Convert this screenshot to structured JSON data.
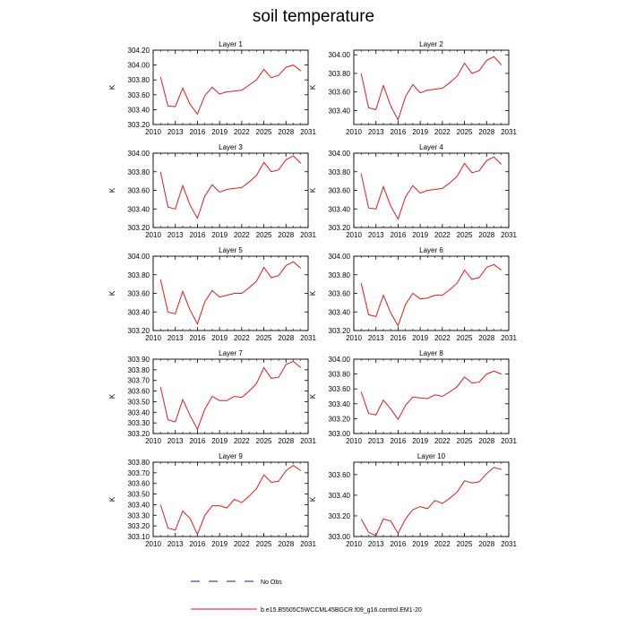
{
  "title": "soil temperature",
  "chart_data": [
    {
      "type": "line",
      "title": "Layer 1",
      "ylabel": "K",
      "x": [
        2011,
        2012,
        2013,
        2014,
        2015,
        2016,
        2017,
        2018,
        2019,
        2020,
        2021,
        2022,
        2023,
        2024,
        2025,
        2026,
        2027,
        2028,
        2029,
        2030
      ],
      "xticks": [
        "2010",
        "2013",
        "2016",
        "2019",
        "2022",
        "2025",
        "2028",
        "2031"
      ],
      "xlim": [
        2010,
        2031
      ],
      "yticks": [
        "303.20",
        "303.40",
        "303.60",
        "303.80",
        "304.00",
        "304.20"
      ],
      "ylim": [
        303.2,
        304.2
      ],
      "series": [
        {
          "values": [
            303.84,
            303.45,
            303.44,
            303.69,
            303.47,
            303.34,
            303.59,
            303.7,
            303.61,
            303.64,
            303.65,
            303.66,
            303.73,
            303.8,
            303.94,
            303.83,
            303.86,
            303.97,
            304.0,
            303.92
          ]
        }
      ]
    },
    {
      "type": "line",
      "title": "Layer 2",
      "ylabel": "K",
      "x": [
        2011,
        2012,
        2013,
        2014,
        2015,
        2016,
        2017,
        2018,
        2019,
        2020,
        2021,
        2022,
        2023,
        2024,
        2025,
        2026,
        2027,
        2028,
        2029,
        2030
      ],
      "xticks": [
        "2010",
        "2013",
        "2016",
        "2019",
        "2022",
        "2025",
        "2028",
        "2031"
      ],
      "xlim": [
        2010,
        2031
      ],
      "yticks": [
        "303.40",
        "303.60",
        "303.80",
        "304.00"
      ],
      "ylim": [
        303.25,
        304.05
      ],
      "series": [
        {
          "values": [
            303.8,
            303.43,
            303.41,
            303.67,
            303.45,
            303.3,
            303.55,
            303.68,
            303.59,
            303.62,
            303.63,
            303.64,
            303.7,
            303.77,
            303.91,
            303.8,
            303.83,
            303.94,
            303.98,
            303.89
          ]
        }
      ]
    },
    {
      "type": "line",
      "title": "Layer 3",
      "ylabel": "K",
      "x": [
        2011,
        2012,
        2013,
        2014,
        2015,
        2016,
        2017,
        2018,
        2019,
        2020,
        2021,
        2022,
        2023,
        2024,
        2025,
        2026,
        2027,
        2028,
        2029,
        2030
      ],
      "xticks": [
        "2010",
        "2013",
        "2016",
        "2019",
        "2022",
        "2025",
        "2028",
        "2031"
      ],
      "xlim": [
        2010,
        2031
      ],
      "yticks": [
        "303.20",
        "303.40",
        "303.60",
        "303.80",
        "304.00"
      ],
      "ylim": [
        303.2,
        304.0
      ],
      "series": [
        {
          "values": [
            303.8,
            303.42,
            303.4,
            303.65,
            303.44,
            303.3,
            303.54,
            303.66,
            303.58,
            303.61,
            303.62,
            303.63,
            303.69,
            303.76,
            303.9,
            303.8,
            303.82,
            303.93,
            303.97,
            303.89
          ]
        }
      ]
    },
    {
      "type": "line",
      "title": "Layer 4",
      "ylabel": "K",
      "x": [
        2011,
        2012,
        2013,
        2014,
        2015,
        2016,
        2017,
        2018,
        2019,
        2020,
        2021,
        2022,
        2023,
        2024,
        2025,
        2026,
        2027,
        2028,
        2029,
        2030
      ],
      "xticks": [
        "2010",
        "2013",
        "2016",
        "2019",
        "2022",
        "2025",
        "2028",
        "2031"
      ],
      "xlim": [
        2010,
        2031
      ],
      "yticks": [
        "303.20",
        "303.40",
        "303.60",
        "303.80",
        "304.00"
      ],
      "ylim": [
        303.2,
        304.0
      ],
      "series": [
        {
          "values": [
            303.78,
            303.41,
            303.4,
            303.64,
            303.43,
            303.29,
            303.53,
            303.65,
            303.57,
            303.6,
            303.61,
            303.62,
            303.68,
            303.75,
            303.89,
            303.79,
            303.81,
            303.92,
            303.96,
            303.88
          ]
        }
      ]
    },
    {
      "type": "line",
      "title": "Layer 5",
      "ylabel": "K",
      "x": [
        2011,
        2012,
        2013,
        2014,
        2015,
        2016,
        2017,
        2018,
        2019,
        2020,
        2021,
        2022,
        2023,
        2024,
        2025,
        2026,
        2027,
        2028,
        2029,
        2030
      ],
      "xticks": [
        "2010",
        "2013",
        "2016",
        "2019",
        "2022",
        "2025",
        "2028",
        "2031"
      ],
      "xlim": [
        2010,
        2031
      ],
      "yticks": [
        "303.20",
        "303.40",
        "303.60",
        "303.80",
        "304.00"
      ],
      "ylim": [
        303.2,
        304.0
      ],
      "series": [
        {
          "values": [
            303.75,
            303.4,
            303.38,
            303.62,
            303.42,
            303.27,
            303.51,
            303.63,
            303.56,
            303.58,
            303.6,
            303.6,
            303.66,
            303.73,
            303.88,
            303.77,
            303.79,
            303.9,
            303.94,
            303.87
          ]
        }
      ]
    },
    {
      "type": "line",
      "title": "Layer 6",
      "ylabel": "K",
      "x": [
        2011,
        2012,
        2013,
        2014,
        2015,
        2016,
        2017,
        2018,
        2019,
        2020,
        2021,
        2022,
        2023,
        2024,
        2025,
        2026,
        2027,
        2028,
        2029,
        2030
      ],
      "xticks": [
        "2010",
        "2013",
        "2016",
        "2019",
        "2022",
        "2025",
        "2028",
        "2031"
      ],
      "xlim": [
        2010,
        2031
      ],
      "yticks": [
        "303.20",
        "303.40",
        "303.60",
        "303.80",
        "304.00"
      ],
      "ylim": [
        303.2,
        304.0
      ],
      "series": [
        {
          "values": [
            303.71,
            303.37,
            303.35,
            303.58,
            303.39,
            303.25,
            303.48,
            303.6,
            303.54,
            303.55,
            303.58,
            303.58,
            303.64,
            303.71,
            303.85,
            303.75,
            303.77,
            303.88,
            303.91,
            303.85
          ]
        }
      ]
    },
    {
      "type": "line",
      "title": "Layer 7",
      "ylabel": "K",
      "x": [
        2011,
        2012,
        2013,
        2014,
        2015,
        2016,
        2017,
        2018,
        2019,
        2020,
        2021,
        2022,
        2023,
        2024,
        2025,
        2026,
        2027,
        2028,
        2029,
        2030
      ],
      "xticks": [
        "2010",
        "2013",
        "2016",
        "2019",
        "2022",
        "2025",
        "2028",
        "2031"
      ],
      "xlim": [
        2010,
        2031
      ],
      "yticks": [
        "303.20",
        "303.30",
        "303.40",
        "303.50",
        "303.60",
        "303.70",
        "303.80",
        "303.90"
      ],
      "ylim": [
        303.2,
        303.9
      ],
      "series": [
        {
          "values": [
            303.64,
            303.33,
            303.31,
            303.52,
            303.37,
            303.24,
            303.43,
            303.55,
            303.51,
            303.51,
            303.55,
            303.54,
            303.6,
            303.67,
            303.82,
            303.72,
            303.73,
            303.85,
            303.88,
            303.82
          ]
        }
      ]
    },
    {
      "type": "line",
      "title": "Layer 8",
      "ylabel": "K",
      "x": [
        2011,
        2012,
        2013,
        2014,
        2015,
        2016,
        2017,
        2018,
        2019,
        2020,
        2021,
        2022,
        2023,
        2024,
        2025,
        2026,
        2027,
        2028,
        2029,
        2030
      ],
      "xticks": [
        "2010",
        "2013",
        "2016",
        "2019",
        "2022",
        "2025",
        "2028",
        "2031"
      ],
      "xlim": [
        2010,
        2031
      ],
      "yticks": [
        "303.00",
        "303.20",
        "303.40",
        "303.60",
        "303.80",
        "304.00"
      ],
      "ylim": [
        303.0,
        304.0
      ],
      "series": [
        {
          "values": [
            303.56,
            303.27,
            303.25,
            303.45,
            303.33,
            303.19,
            303.38,
            303.49,
            303.48,
            303.47,
            303.52,
            303.5,
            303.56,
            303.63,
            303.76,
            303.68,
            303.69,
            303.8,
            303.84,
            303.8
          ]
        }
      ]
    },
    {
      "type": "line",
      "title": "Layer 9",
      "ylabel": "K",
      "x": [
        2011,
        2012,
        2013,
        2014,
        2015,
        2016,
        2017,
        2018,
        2019,
        2020,
        2021,
        2022,
        2023,
        2024,
        2025,
        2026,
        2027,
        2028,
        2029,
        2030
      ],
      "xticks": [
        "2010",
        "2013",
        "2016",
        "2019",
        "2022",
        "2025",
        "2028",
        "2031"
      ],
      "xlim": [
        2010,
        2031
      ],
      "yticks": [
        "303.10",
        "303.20",
        "303.30",
        "303.40",
        "303.50",
        "303.60",
        "303.70",
        "303.80"
      ],
      "ylim": [
        303.1,
        303.8
      ],
      "series": [
        {
          "values": [
            303.4,
            303.18,
            303.16,
            303.34,
            303.27,
            303.12,
            303.3,
            303.39,
            303.39,
            303.37,
            303.45,
            303.42,
            303.48,
            303.55,
            303.68,
            303.61,
            303.62,
            303.72,
            303.77,
            303.72
          ]
        }
      ]
    },
    {
      "type": "line",
      "title": "Layer 10",
      "ylabel": "K",
      "x": [
        2011,
        2012,
        2013,
        2014,
        2015,
        2016,
        2017,
        2018,
        2019,
        2020,
        2021,
        2022,
        2023,
        2024,
        2025,
        2026,
        2027,
        2028,
        2029,
        2030
      ],
      "xticks": [
        "2010",
        "2013",
        "2016",
        "2019",
        "2022",
        "2025",
        "2028",
        "2031"
      ],
      "xlim": [
        2010,
        2031
      ],
      "yticks": [
        "303.00",
        "303.20",
        "303.40",
        "303.60"
      ],
      "ylim": [
        303.0,
        303.72
      ],
      "series": [
        {
          "values": [
            303.17,
            303.04,
            303.01,
            303.17,
            303.15,
            303.03,
            303.17,
            303.26,
            303.29,
            303.27,
            303.35,
            303.32,
            303.37,
            303.43,
            303.54,
            303.52,
            303.53,
            303.61,
            303.67,
            303.65
          ]
        }
      ]
    }
  ],
  "legend": {
    "items": [
      {
        "label": "No Obs",
        "style": "dashed",
        "color": "#1a1a9a"
      },
      {
        "label": "b.e15.B5505C5WCCML45BGCR.f09_g16.control.EM1-20",
        "style": "solid",
        "color": "#e31a1c"
      }
    ],
    "placement": "bottom"
  },
  "colors": {
    "series_line": "#e31a1c",
    "no_obs_line": "#1a1a9a",
    "axis": "#000000"
  }
}
